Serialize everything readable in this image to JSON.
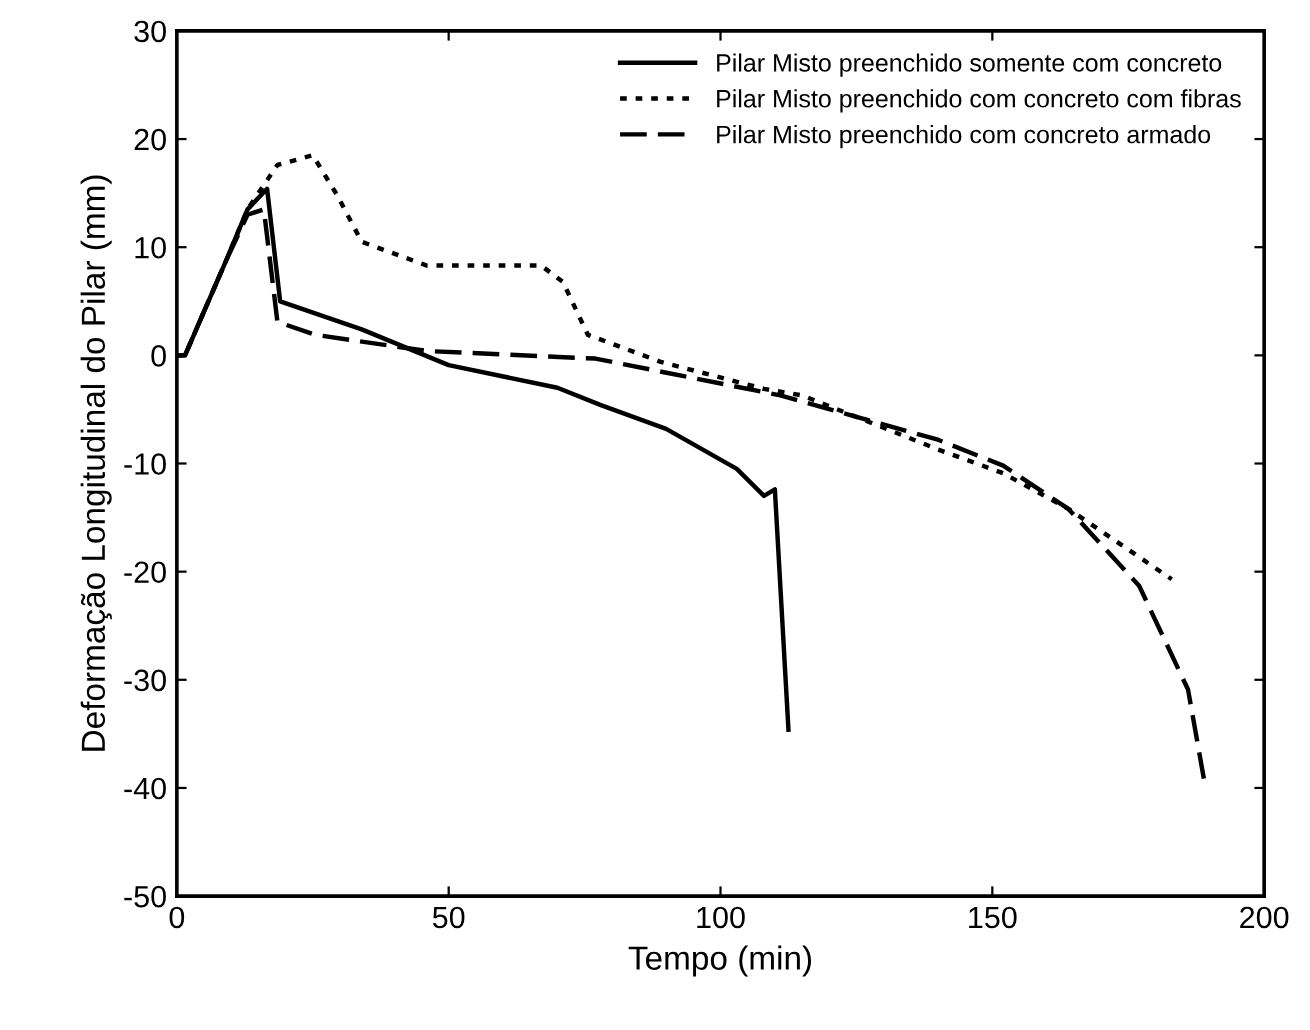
{
  "chart_data": {
    "type": "line",
    "xlabel": "Tempo (min)",
    "ylabel": "Deformação Longitudinal do Pilar (mm)",
    "xlim": [
      0,
      200
    ],
    "ylim": [
      -50,
      30
    ],
    "xticks": [
      0,
      50,
      100,
      150,
      200
    ],
    "yticks": [
      -50,
      -40,
      -30,
      -20,
      -10,
      0,
      10,
      20,
      30
    ],
    "grid": false,
    "legend": "top right",
    "series": [
      {
        "name": "Pilar Misto preenchido somente com concreto",
        "color": "#000000",
        "line_style": "solid",
        "x": [
          0,
          1.5,
          9,
          13,
          16.6,
          19,
          34,
          50,
          70,
          78,
          90,
          103,
          108,
          110,
          112.5
        ],
        "values": [
          0,
          0,
          8.7,
          13.5,
          15.4,
          5,
          2.4,
          -0.9,
          -3,
          -4.6,
          -6.8,
          -10.5,
          -13,
          -12.4,
          -34.6
        ]
      },
      {
        "name": "Pilar Misto preenchido com concreto com fibras",
        "color": "#000000",
        "line_style": "dotted",
        "x": [
          0,
          1.5,
          9,
          13,
          18.5,
          25,
          29.5,
          34,
          46,
          67,
          71,
          75.6,
          89,
          108,
          115,
          140,
          152,
          164,
          183
        ],
        "values": [
          0,
          0,
          8.7,
          13.5,
          17.6,
          18.5,
          14.8,
          10.5,
          8.3,
          8.3,
          6.8,
          1.9,
          -0.6,
          -3.1,
          -3.7,
          -8.7,
          -10.9,
          -14.2,
          -20.7
        ]
      },
      {
        "name": "Pilar Misto preenchido com concreto armado",
        "color": "#000000",
        "line_style": "dashed",
        "x": [
          0,
          1.5,
          9,
          13,
          16,
          18.5,
          25.4,
          46,
          77,
          111,
          140,
          152,
          164,
          177,
          186,
          189
        ],
        "values": [
          0,
          0,
          8.7,
          13,
          13.5,
          3.1,
          1.9,
          0.4,
          -0.3,
          -3.7,
          -7.8,
          -10.2,
          -14.2,
          -21.3,
          -30.9,
          -39.4
        ]
      }
    ]
  }
}
